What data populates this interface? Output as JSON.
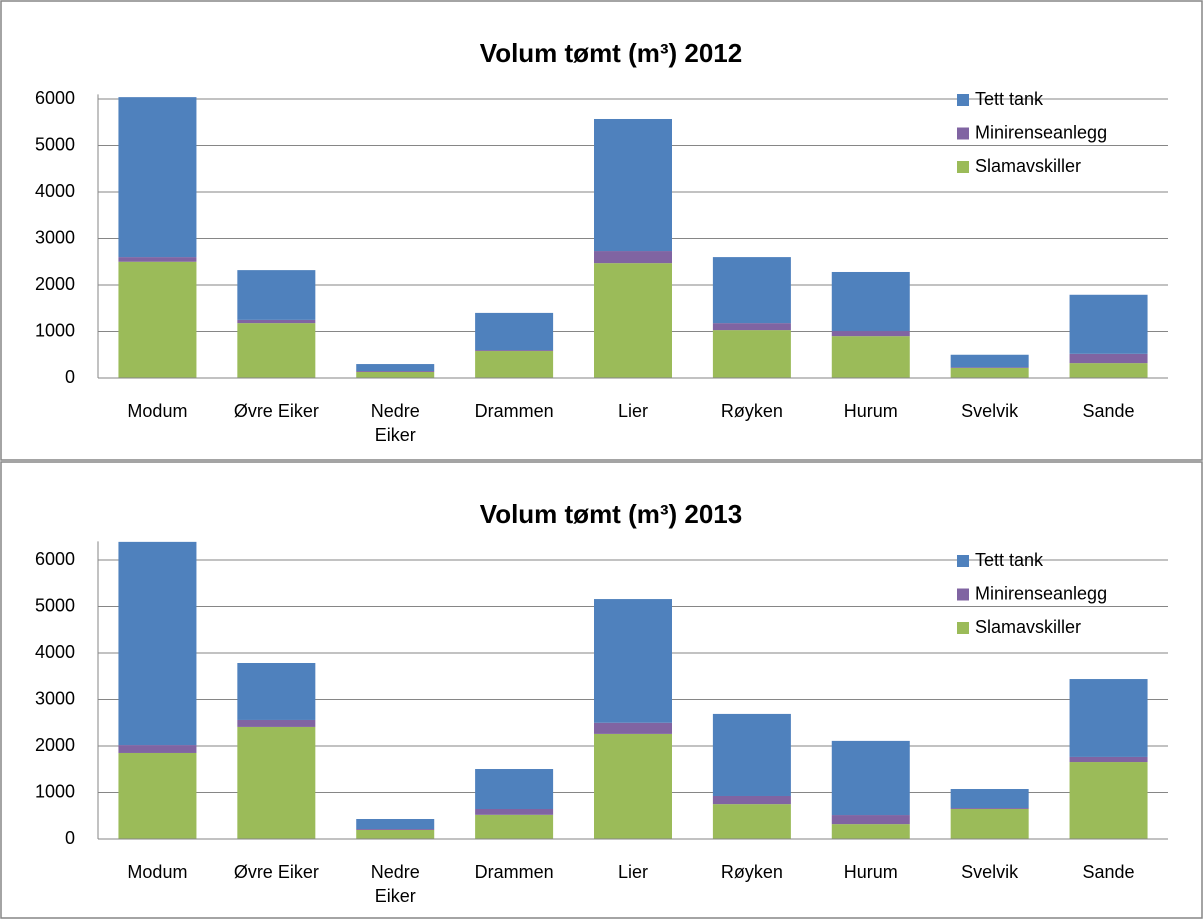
{
  "chart_data": [
    {
      "type": "stacked-bar",
      "title": "Volum tømt (m³) 2012",
      "categories": [
        "Modum",
        "Øvre Eiker",
        "Nedre Eiker",
        "Drammen",
        "Lier",
        "Røyken",
        "Hurum",
        "Svelvik",
        "Sande"
      ],
      "series": [
        {
          "name": "Slamavskiller",
          "color": "#9bbb59",
          "values": [
            2500,
            1180,
            130,
            580,
            2470,
            1030,
            900,
            215,
            320
          ]
        },
        {
          "name": "Minirenseanlegg",
          "color": "#8064a2",
          "values": [
            100,
            70,
            20,
            20,
            260,
            150,
            110,
            15,
            200
          ]
        },
        {
          "name": "Tett tank",
          "color": "#4f81bd",
          "values": [
            3440,
            1070,
            150,
            800,
            2840,
            1420,
            1270,
            270,
            1270
          ]
        }
      ],
      "ylim": [
        0,
        6100
      ],
      "yticks": [
        0,
        1000,
        2000,
        3000,
        4000,
        5000,
        6000
      ],
      "grid": true,
      "legend": "top-right"
    },
    {
      "type": "stacked-bar",
      "title": "Volum tømt (m³) 2013",
      "categories": [
        "Modum",
        "Øvre Eiker",
        "Nedre Eiker",
        "Drammen",
        "Lier",
        "Røyken",
        "Hurum",
        "Svelvik",
        "Sande"
      ],
      "series": [
        {
          "name": "Slamavskiller",
          "color": "#9bbb59",
          "values": [
            1850,
            2410,
            195,
            520,
            2260,
            750,
            320,
            645,
            1655
          ]
        },
        {
          "name": "Minirenseanlegg",
          "color": "#8064a2",
          "values": [
            170,
            150,
            20,
            125,
            240,
            175,
            195,
            20,
            110
          ]
        },
        {
          "name": "Tett tank",
          "color": "#4f81bd",
          "values": [
            4370,
            1225,
            215,
            860,
            2660,
            1765,
            1595,
            410,
            1675
          ]
        }
      ],
      "ylim": [
        0,
        6400
      ],
      "yticks": [
        0,
        1000,
        2000,
        3000,
        4000,
        5000,
        6000
      ],
      "grid": true,
      "legend": "top-right"
    }
  ]
}
